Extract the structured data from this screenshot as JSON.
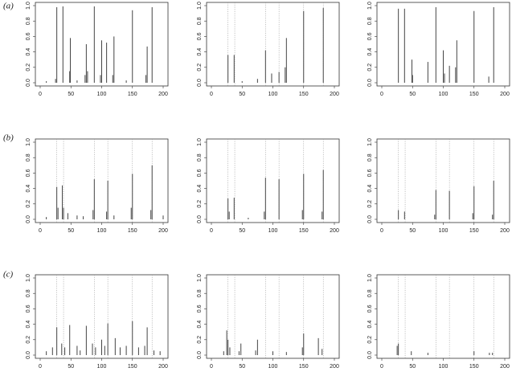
{
  "row_labels": [
    "(a)",
    "(b)",
    "(c)"
  ],
  "chart_data": [
    {
      "type": "spike",
      "xlim": [
        0,
        200
      ],
      "ylim": [
        0,
        1
      ],
      "xticks": [
        0,
        50,
        100,
        150,
        200
      ],
      "yticks": [
        {
          "value": 0,
          "label": "0.0"
        },
        0.2,
        0.4,
        0.6,
        0.8,
        {
          "value": 1,
          "label": "1.0"
        }
      ],
      "color": "#444444",
      "vlines": [],
      "x": [
        10,
        25,
        27,
        37,
        48,
        49,
        60,
        73,
        75,
        77,
        88,
        98,
        100,
        108,
        118,
        120,
        140,
        150,
        172,
        174,
        182
      ],
      "values": [
        0.02,
        0.05,
        0.98,
        0.99,
        0.15,
        0.58,
        0.03,
        0.1,
        0.5,
        0.15,
        0.99,
        0.1,
        0.55,
        0.52,
        0.1,
        0.6,
        0.03,
        0.94,
        0.1,
        0.47,
        0.98
      ]
    },
    {
      "type": "spike",
      "xlim": [
        0,
        200
      ],
      "ylim": [
        0,
        1
      ],
      "xticks": [
        0,
        50,
        100,
        150,
        200
      ],
      "yticks": [
        {
          "value": 0,
          "label": "0.0"
        },
        0.2,
        0.4,
        0.6,
        0.8,
        {
          "value": 1,
          "label": "1.0"
        }
      ],
      "color": "#444444",
      "vlines": [
        27,
        38,
        88,
        110,
        150,
        182
      ],
      "x": [
        27,
        37,
        50,
        75,
        88,
        98,
        110,
        120,
        122,
        150,
        182
      ],
      "values": [
        0.36,
        0.36,
        0.02,
        0.05,
        0.42,
        0.12,
        0.14,
        0.2,
        0.58,
        0.93,
        0.97
      ]
    },
    {
      "type": "spike",
      "xlim": [
        0,
        200
      ],
      "ylim": [
        0,
        1
      ],
      "xticks": [
        0,
        50,
        100,
        150,
        200
      ],
      "yticks": [
        {
          "value": 0,
          "label": "0.0"
        },
        0.2,
        0.4,
        0.6,
        0.8,
        {
          "value": 1,
          "label": "1.0"
        }
      ],
      "color": "#444444",
      "vlines": [],
      "x": [
        27,
        37,
        49,
        50,
        75,
        88,
        100,
        102,
        110,
        120,
        122,
        150,
        174,
        182
      ],
      "values": [
        0.96,
        0.96,
        0.3,
        0.1,
        0.27,
        0.98,
        0.42,
        0.12,
        0.22,
        0.2,
        0.55,
        0.93,
        0.08,
        0.98
      ]
    },
    {
      "type": "spike",
      "xlim": [
        0,
        200
      ],
      "ylim": [
        0,
        1
      ],
      "xticks": [
        0,
        50,
        100,
        150,
        200
      ],
      "yticks": [
        {
          "value": 0,
          "label": "0.0"
        },
        0.2,
        0.4,
        0.6,
        0.8,
        {
          "value": 1,
          "label": "1.0"
        }
      ],
      "color": "#444444",
      "vlines": [
        27,
        38,
        88,
        110,
        150,
        182
      ],
      "x": [
        10,
        27,
        29,
        36,
        38,
        45,
        60,
        70,
        86,
        88,
        108,
        110,
        120,
        148,
        150,
        180,
        182,
        200
      ],
      "values": [
        0.03,
        0.42,
        0.15,
        0.44,
        0.15,
        0.08,
        0.05,
        0.04,
        0.12,
        0.52,
        0.1,
        0.5,
        0.05,
        0.15,
        0.59,
        0.12,
        0.7,
        0.05
      ]
    },
    {
      "type": "spike",
      "xlim": [
        0,
        200
      ],
      "ylim": [
        0,
        1
      ],
      "xticks": [
        0,
        50,
        100,
        150,
        200
      ],
      "yticks": [
        {
          "value": 0,
          "label": "0.0"
        },
        0.2,
        0.4,
        0.6,
        0.8,
        {
          "value": 1,
          "label": "1.0"
        }
      ],
      "color": "#444444",
      "vlines": [
        27,
        38,
        88,
        110,
        150,
        182
      ],
      "x": [
        27,
        29,
        37,
        60,
        86,
        88,
        110,
        148,
        150,
        180,
        182
      ],
      "values": [
        0.27,
        0.1,
        0.28,
        0.02,
        0.1,
        0.54,
        0.52,
        0.12,
        0.59,
        0.1,
        0.64
      ]
    },
    {
      "type": "spike",
      "xlim": [
        0,
        200
      ],
      "ylim": [
        0,
        1
      ],
      "xticks": [
        0,
        50,
        100,
        150,
        200
      ],
      "yticks": [
        {
          "value": 0,
          "label": "0.0"
        },
        0.2,
        0.4,
        0.6,
        0.8,
        {
          "value": 1,
          "label": "1.0"
        }
      ],
      "color": "#444444",
      "vlines": [
        27,
        38,
        88,
        110,
        150,
        182
      ],
      "x": [
        27,
        37,
        86,
        88,
        110,
        148,
        150,
        180,
        182
      ],
      "values": [
        0.12,
        0.1,
        0.06,
        0.38,
        0.37,
        0.08,
        0.43,
        0.06,
        0.5
      ]
    },
    {
      "type": "spike",
      "xlim": [
        0,
        200
      ],
      "ylim": [
        0,
        1
      ],
      "xticks": [
        0,
        50,
        100,
        150,
        200
      ],
      "yticks": [
        {
          "value": 0,
          "label": "0.0"
        },
        0.2,
        0.4,
        0.6,
        0.8,
        {
          "value": 1,
          "label": "1.0"
        }
      ],
      "color": "#444444",
      "vlines": [
        27,
        38,
        88,
        110,
        150,
        182
      ],
      "x": [
        10,
        20,
        27,
        35,
        40,
        48,
        60,
        65,
        75,
        85,
        90,
        100,
        105,
        110,
        122,
        130,
        140,
        150,
        160,
        170,
        174,
        185,
        195
      ],
      "values": [
        0.05,
        0.1,
        0.36,
        0.15,
        0.1,
        0.39,
        0.12,
        0.06,
        0.38,
        0.15,
        0.1,
        0.2,
        0.12,
        0.41,
        0.22,
        0.1,
        0.12,
        0.44,
        0.1,
        0.12,
        0.36,
        0.06,
        0.05
      ]
    },
    {
      "type": "spike",
      "xlim": [
        0,
        200
      ],
      "ylim": [
        0,
        1
      ],
      "xticks": [
        0,
        50,
        100,
        150,
        200
      ],
      "yticks": [
        {
          "value": 0,
          "label": "0.0"
        },
        0.2,
        0.4,
        0.6,
        0.8,
        {
          "value": 1,
          "label": "1.0"
        }
      ],
      "color": "#444444",
      "vlines": [
        27,
        38,
        88,
        110,
        150,
        182
      ],
      "x": [
        20,
        25,
        27,
        30,
        45,
        48,
        72,
        75,
        100,
        122,
        148,
        150,
        174,
        180
      ],
      "values": [
        0.05,
        0.32,
        0.2,
        0.1,
        0.05,
        0.15,
        0.06,
        0.2,
        0.05,
        0.04,
        0.1,
        0.28,
        0.22,
        0.08
      ]
    },
    {
      "type": "spike",
      "xlim": [
        0,
        200
      ],
      "ylim": [
        0,
        1
      ],
      "xticks": [
        0,
        50,
        100,
        150,
        200
      ],
      "yticks": [
        {
          "value": 0,
          "label": "0.0"
        },
        0.2,
        0.4,
        0.6,
        0.8,
        {
          "value": 1,
          "label": "1.0"
        }
      ],
      "color": "#444444",
      "vlines": [
        27,
        38,
        88,
        110,
        150,
        182
      ],
      "x": [
        25,
        27,
        48,
        75,
        150,
        175,
        180
      ],
      "values": [
        0.12,
        0.15,
        0.05,
        0.03,
        0.05,
        0.03,
        0.03
      ]
    }
  ]
}
